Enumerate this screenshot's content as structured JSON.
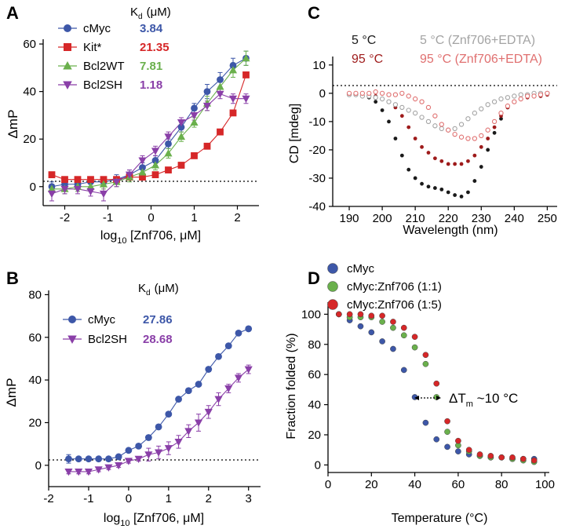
{
  "figure": {
    "panels": [
      "A",
      "B",
      "C",
      "D"
    ]
  },
  "chart_data": [
    {
      "panel": "A",
      "type": "scatter",
      "xlabel_main": "log",
      "xlabel_sub": "10",
      "xlabel_rest": " [Znf706, μM]",
      "ylabel": "ΔmP",
      "xlim": [
        -2.5,
        2.5
      ],
      "ylim": [
        -8,
        62
      ],
      "xticks": [
        -2,
        -1,
        0,
        1,
        2
      ],
      "yticks": [
        0,
        20,
        40,
        60
      ],
      "kd_header_main": "K",
      "kd_header_sub": "d",
      "kd_header_unit": "(μM)",
      "series": [
        {
          "name": "cMyc",
          "kd": "3.84",
          "color": "#3d57a8",
          "marker": "circle",
          "x": [
            -2.3,
            -2.0,
            -1.7,
            -1.4,
            -1.1,
            -0.8,
            -0.5,
            -0.2,
            0.1,
            0.4,
            0.7,
            1.0,
            1.3,
            1.6,
            1.9,
            2.2
          ],
          "y": [
            0,
            1,
            1,
            2,
            2,
            3,
            5,
            8,
            11,
            18,
            25,
            33,
            40,
            45,
            51,
            54
          ],
          "err": [
            2,
            2,
            2,
            2,
            2,
            2,
            2,
            2,
            2,
            2,
            2,
            2,
            3,
            3,
            3,
            3
          ]
        },
        {
          "name": "Kit*",
          "kd": "21.35",
          "color": "#d62728",
          "marker": "square",
          "x": [
            -2.3,
            -2.0,
            -1.7,
            -1.4,
            -1.1,
            -0.8,
            -0.5,
            -0.2,
            0.1,
            0.4,
            0.7,
            1.0,
            1.3,
            1.6,
            1.9,
            2.2
          ],
          "y": [
            5,
            3,
            3,
            3,
            3,
            3,
            4,
            4,
            5,
            7,
            9,
            13,
            17,
            23,
            31,
            47
          ],
          "err": [
            1,
            1,
            1,
            1,
            1,
            1,
            1,
            1,
            1,
            1,
            1,
            1,
            1,
            1,
            1,
            1
          ]
        },
        {
          "name": "Bcl2WT",
          "kd": "7.81",
          "color": "#6ab04c",
          "marker": "triangle-up",
          "x": [
            -2.3,
            -2.0,
            -1.7,
            -1.4,
            -1.1,
            -0.8,
            -0.5,
            -0.2,
            0.1,
            0.4,
            0.7,
            1.0,
            1.3,
            1.6,
            1.9,
            2.2
          ],
          "y": [
            -1,
            -1,
            0,
            0,
            1,
            2,
            4,
            6,
            9,
            14,
            21,
            27,
            35,
            42,
            49,
            54
          ],
          "err": [
            2,
            2,
            2,
            2,
            2,
            2,
            2,
            2,
            2,
            2,
            2,
            2,
            3,
            3,
            3,
            3
          ]
        },
        {
          "name": "Bcl2SH",
          "kd": "1.18",
          "color": "#8a3fa8",
          "marker": "triangle-down",
          "x": [
            -2.3,
            -2.0,
            -1.7,
            -1.4,
            -1.1,
            -0.8,
            -0.5,
            -0.2,
            0.1,
            0.4,
            0.7,
            1.0,
            1.3,
            1.6,
            1.9,
            2.2
          ],
          "y": [
            -3,
            -1,
            -1,
            -2,
            -3,
            2,
            5,
            11,
            15,
            21,
            27,
            30,
            34,
            39,
            37,
            37
          ],
          "err": [
            3,
            2,
            2,
            2,
            3,
            2,
            2,
            2,
            2,
            2,
            2,
            2,
            2,
            2,
            2,
            2
          ]
        }
      ]
    },
    {
      "panel": "B",
      "type": "scatter",
      "xlabel_main": "log",
      "xlabel_sub": "10",
      "xlabel_rest": " [Znf706, μM]",
      "ylabel": "ΔmP",
      "xlim": [
        -2,
        3.3
      ],
      "ylim": [
        -10,
        82
      ],
      "xticks": [
        -2,
        -1,
        0,
        1,
        2,
        3
      ],
      "yticks": [
        0,
        20,
        40,
        60,
        80
      ],
      "kd_header_main": "K",
      "kd_header_sub": "d",
      "kd_header_unit": "(μM)",
      "series": [
        {
          "name": "cMyc",
          "kd": "27.86",
          "color": "#3d57a8",
          "marker": "circle",
          "x": [
            -1.5,
            -1.25,
            -1.0,
            -0.75,
            -0.5,
            -0.25,
            0.0,
            0.25,
            0.5,
            0.75,
            1.0,
            1.25,
            1.5,
            1.75,
            2.0,
            2.25,
            2.5,
            2.75,
            3.0
          ],
          "y": [
            3,
            3,
            3,
            3,
            3,
            4,
            7,
            9,
            13,
            18,
            24,
            31,
            35,
            38,
            45,
            51,
            56,
            62,
            64
          ],
          "err": [
            2,
            1,
            1,
            1,
            1,
            1,
            1,
            1,
            1,
            1,
            1,
            1,
            1,
            1,
            1,
            1,
            1,
            1,
            1
          ]
        },
        {
          "name": "Bcl2SH",
          "kd": "28.68",
          "color": "#8a3fa8",
          "marker": "triangle-down",
          "x": [
            -1.5,
            -1.25,
            -1.0,
            -0.75,
            -0.5,
            -0.25,
            0.0,
            0.25,
            0.5,
            0.75,
            1.0,
            1.25,
            1.5,
            1.75,
            2.0,
            2.25,
            2.5,
            2.75,
            3.0
          ],
          "y": [
            -3,
            -3,
            -3,
            -2,
            -1,
            0,
            2,
            3,
            5,
            6,
            8,
            11,
            16,
            20,
            25,
            31,
            36,
            41,
            45
          ],
          "err": [
            1,
            1,
            1,
            1,
            1,
            1,
            1,
            1,
            3,
            3,
            3,
            3,
            3,
            4,
            3,
            3,
            2,
            2,
            2
          ]
        }
      ]
    },
    {
      "panel": "C",
      "type": "scatter",
      "xlabel": "Wavelength (nm)",
      "ylabel": "CD  [mdeg]",
      "xlim": [
        185,
        253
      ],
      "ylim": [
        -40,
        13
      ],
      "xticks": [
        190,
        200,
        210,
        220,
        230,
        240,
        250
      ],
      "yticks": [
        10,
        0,
        -10,
        -20,
        -30,
        -40
      ],
      "series": [
        {
          "name": "5 °C",
          "color": "#1a1a1a",
          "filled": true,
          "x": [
            190,
            192,
            194,
            196,
            198,
            200,
            202,
            204,
            206,
            208,
            210,
            212,
            214,
            216,
            218,
            220,
            222,
            224,
            226,
            228,
            230,
            232,
            234,
            236,
            238,
            240,
            242,
            244,
            246,
            248,
            250
          ],
          "y": [
            0,
            -0.5,
            -1,
            -1.5,
            -3,
            -6,
            -10,
            -16,
            -22,
            -27,
            -30,
            -32,
            -33,
            -33.5,
            -34,
            -35,
            -36,
            -36.5,
            -35,
            -31,
            -26,
            -20,
            -14,
            -9,
            -5,
            -3,
            -2,
            -1,
            -1,
            -1,
            -0.5
          ]
        },
        {
          "name": "95 °C",
          "color": "#9e1b1b",
          "filled": true,
          "x": [
            190,
            192,
            194,
            196,
            198,
            200,
            202,
            204,
            206,
            208,
            210,
            212,
            214,
            216,
            218,
            220,
            222,
            224,
            226,
            228,
            230,
            232,
            234,
            236,
            238,
            240,
            242,
            244,
            246,
            248,
            250
          ],
          "y": [
            0,
            0,
            0,
            -0.5,
            -1,
            -2,
            -3,
            -5,
            -8,
            -12,
            -16,
            -19,
            -21,
            -23,
            -24,
            -25,
            -25,
            -25,
            -24,
            -22,
            -19,
            -16,
            -12,
            -8,
            -5,
            -3,
            -2,
            -1.5,
            -1,
            -1,
            -0.5
          ]
        },
        {
          "name": "5 °C (Znf706+EDTA)",
          "color": "#a3a3a3",
          "filled": false,
          "x": [
            190,
            192,
            194,
            196,
            198,
            200,
            202,
            204,
            206,
            208,
            210,
            212,
            214,
            216,
            218,
            220,
            222,
            224,
            226,
            228,
            230,
            232,
            234,
            236,
            238,
            240,
            242,
            244,
            246,
            248,
            250
          ],
          "y": [
            -0.5,
            -0.5,
            -1,
            -1,
            -1.5,
            -2,
            -3,
            -4,
            -5,
            -6,
            -7,
            -8.5,
            -10,
            -11.5,
            -12.5,
            -13,
            -12.5,
            -11,
            -9,
            -7,
            -5.5,
            -4,
            -3,
            -2,
            -1.5,
            -1,
            -0.5,
            -0.5,
            0,
            0,
            0
          ]
        },
        {
          "name": "95 °C (Znf706+EDTA)",
          "color": "#e07070",
          "filled": false,
          "x": [
            190,
            192,
            194,
            196,
            198,
            200,
            202,
            204,
            206,
            208,
            210,
            212,
            214,
            216,
            218,
            220,
            222,
            224,
            226,
            228,
            230,
            232,
            234,
            236,
            238,
            240,
            242,
            244,
            246,
            248,
            250
          ],
          "y": [
            0,
            0,
            0,
            0,
            0.5,
            0,
            -0.5,
            -0.5,
            0,
            -1,
            -2,
            -3,
            -5,
            -8,
            -11,
            -13,
            -14.5,
            -15.5,
            -16,
            -16,
            -15,
            -13,
            -10,
            -7,
            -4.5,
            -3,
            -2,
            -1,
            -1,
            -0.5,
            0
          ]
        }
      ]
    },
    {
      "panel": "D",
      "type": "scatter",
      "xlabel": "Temperature (°C)",
      "ylabel": "Fraction folded (%)",
      "xlim": [
        0,
        102
      ],
      "ylim": [
        -5,
        108
      ],
      "xticks": [
        0,
        20,
        40,
        60,
        80,
        100
      ],
      "yticks": [
        0,
        20,
        40,
        60,
        80,
        100
      ],
      "annotation_main": "ΔT",
      "annotation_sub": "m",
      "annotation_rest": " ~10 °C",
      "series": [
        {
          "name": "cMyc",
          "color": "#3d57a8",
          "x": [
            5,
            10,
            15,
            20,
            25,
            30,
            35,
            40,
            45,
            50,
            55,
            60,
            65,
            70,
            75,
            80,
            85,
            90,
            95
          ],
          "y": [
            100,
            96,
            92,
            88,
            82,
            77,
            63,
            45,
            28,
            17,
            12,
            9,
            7,
            6,
            5,
            5,
            4,
            4,
            4
          ]
        },
        {
          "name": "cMyc:Znf706 (1:1)",
          "color": "#6ab04c",
          "x": [
            5,
            10,
            15,
            20,
            25,
            30,
            35,
            40,
            45,
            50,
            55,
            60,
            65,
            70,
            75,
            80,
            85,
            90,
            95
          ],
          "y": [
            100,
            98,
            98,
            98,
            95,
            91,
            86,
            78,
            67,
            45,
            22,
            13,
            9,
            6,
            5,
            5,
            4,
            3,
            2
          ]
        },
        {
          "name": "cMyc:Znf706 (1:5)",
          "color": "#d62728",
          "x": [
            5,
            10,
            15,
            20,
            25,
            30,
            35,
            40,
            45,
            50,
            55,
            60,
            65,
            70,
            75,
            80,
            85,
            90,
            95
          ],
          "y": [
            100,
            100,
            100,
            99,
            99,
            95,
            91,
            85,
            73,
            54,
            29,
            16,
            10,
            7,
            6,
            5,
            5,
            4,
            3
          ]
        }
      ]
    }
  ]
}
